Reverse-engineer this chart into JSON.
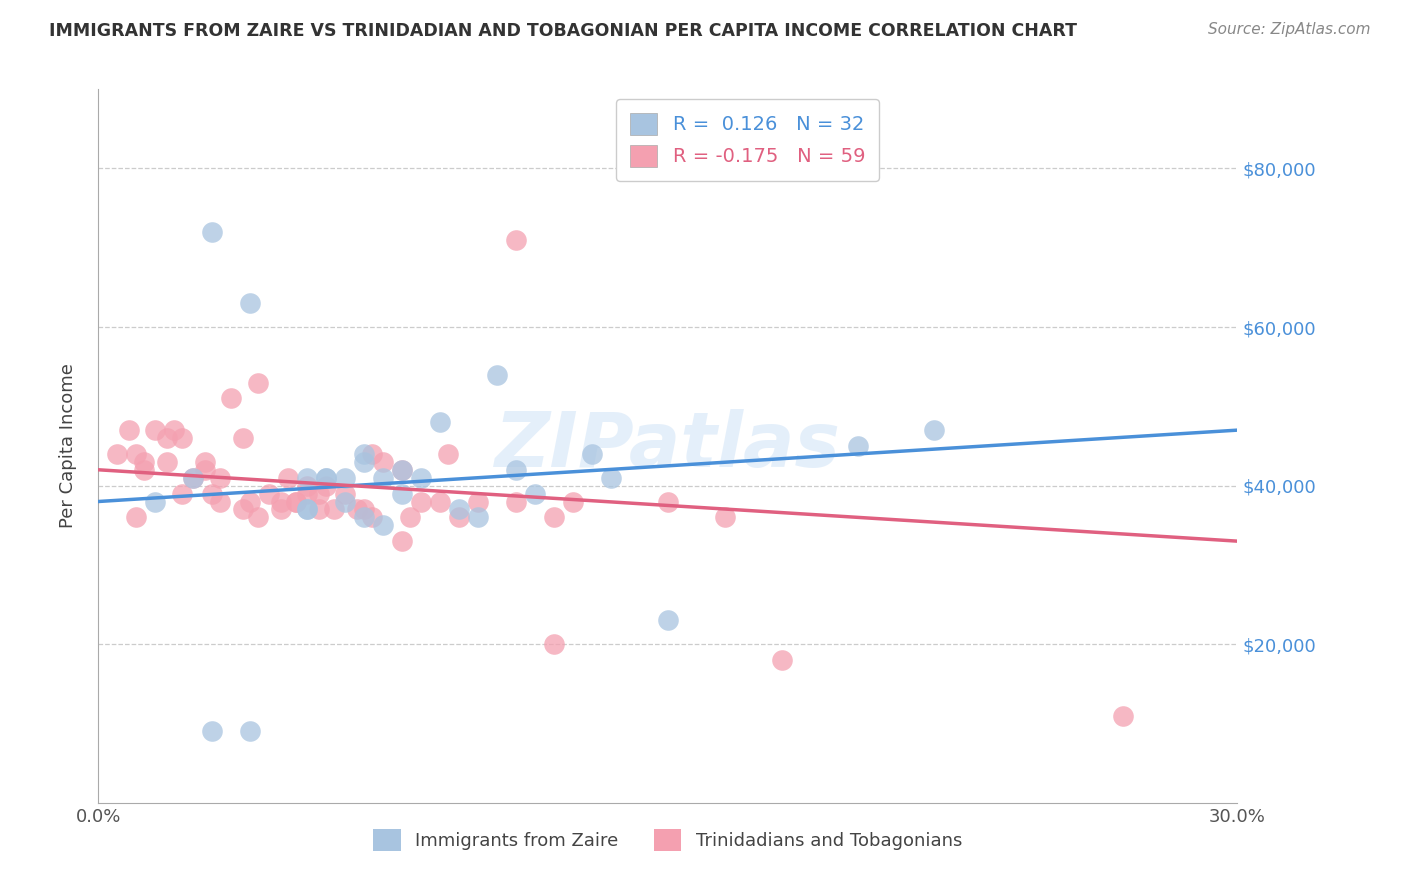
{
  "title": "IMMIGRANTS FROM ZAIRE VS TRINIDADIAN AND TOBAGONIAN PER CAPITA INCOME CORRELATION CHART",
  "source": "Source: ZipAtlas.com",
  "ylabel": "Per Capita Income",
  "xlim": [
    0.0,
    0.3
  ],
  "ylim": [
    0,
    90000
  ],
  "yticks": [
    0,
    20000,
    40000,
    60000,
    80000
  ],
  "xticks": [
    0.0,
    0.05,
    0.1,
    0.15,
    0.2,
    0.25,
    0.3
  ],
  "r1": 0.126,
  "n1": 32,
  "r2": -0.175,
  "n2": 59,
  "blue_scatter_color": "#a8c4e0",
  "pink_scatter_color": "#f4a0b0",
  "blue_line_color": "#4a90d9",
  "pink_line_color": "#e06080",
  "watermark": "ZIPatlas",
  "legend1_label": "Immigrants from Zaire",
  "legend2_label": "Trinidadians and Tobagonians",
  "blue_line_y0": 38000,
  "blue_line_y1": 47000,
  "pink_line_y0": 42000,
  "pink_line_y1": 33000,
  "blue_x": [
    0.015,
    0.03,
    0.055,
    0.055,
    0.06,
    0.065,
    0.065,
    0.07,
    0.075,
    0.08,
    0.085,
    0.09,
    0.095,
    0.1,
    0.105,
    0.115,
    0.13,
    0.135,
    0.15,
    0.2,
    0.22,
    0.025,
    0.04,
    0.06,
    0.07,
    0.08,
    0.055,
    0.07,
    0.03,
    0.04,
    0.075,
    0.11
  ],
  "blue_y": [
    38000,
    72000,
    37000,
    37000,
    41000,
    38000,
    41000,
    44000,
    35000,
    39000,
    41000,
    48000,
    37000,
    36000,
    54000,
    39000,
    44000,
    41000,
    23000,
    45000,
    47000,
    41000,
    63000,
    41000,
    36000,
    42000,
    41000,
    43000,
    9000,
    9000,
    41000,
    42000
  ],
  "pink_x": [
    0.005,
    0.008,
    0.01,
    0.012,
    0.015,
    0.018,
    0.02,
    0.022,
    0.025,
    0.028,
    0.03,
    0.032,
    0.035,
    0.038,
    0.04,
    0.042,
    0.045,
    0.048,
    0.05,
    0.052,
    0.055,
    0.058,
    0.06,
    0.065,
    0.07,
    0.072,
    0.075,
    0.08,
    0.085,
    0.09,
    0.095,
    0.1,
    0.12,
    0.125,
    0.15,
    0.18,
    0.012,
    0.022,
    0.032,
    0.042,
    0.052,
    0.062,
    0.072,
    0.082,
    0.01,
    0.018,
    0.028,
    0.038,
    0.048,
    0.058,
    0.068,
    0.08,
    0.092,
    0.11,
    0.055,
    0.12,
    0.165,
    0.27,
    0.11
  ],
  "pink_y": [
    44000,
    47000,
    44000,
    42000,
    47000,
    43000,
    47000,
    46000,
    41000,
    42000,
    39000,
    41000,
    51000,
    46000,
    38000,
    53000,
    39000,
    38000,
    41000,
    38000,
    39000,
    37000,
    40000,
    39000,
    37000,
    36000,
    43000,
    33000,
    38000,
    38000,
    36000,
    38000,
    36000,
    38000,
    38000,
    18000,
    43000,
    39000,
    38000,
    36000,
    38000,
    37000,
    44000,
    36000,
    36000,
    46000,
    43000,
    37000,
    37000,
    39000,
    37000,
    42000,
    44000,
    38000,
    40000,
    20000,
    36000,
    11000,
    71000
  ]
}
